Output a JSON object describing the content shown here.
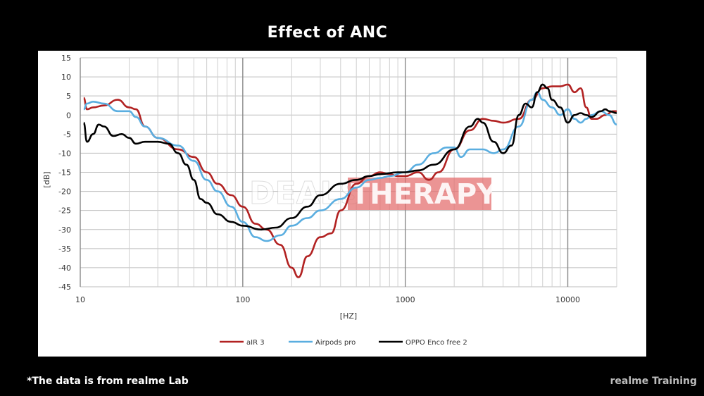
{
  "title": "Effect of  ANC",
  "footnote": "*The data is from realme Lab",
  "brand": "realme Training",
  "colors": {
    "background": "#000000",
    "panel": "#ffffff"
  },
  "chart_data": {
    "type": "line",
    "title": "",
    "xlabel": "[HZ]",
    "ylabel": "[dB]",
    "xscale": "log",
    "xlim": [
      10,
      20000
    ],
    "ylim": [
      -45,
      15
    ],
    "xticks": [
      10,
      100,
      1000,
      10000
    ],
    "xtick_labels": [
      "10",
      "100",
      "1000",
      "10000"
    ],
    "yticks": [
      15,
      10,
      5,
      0,
      -5,
      -10,
      -15,
      -20,
      -25,
      -30,
      -35,
      -40,
      -45
    ],
    "grid": true,
    "legend": "bottom",
    "series": [
      {
        "name": "aIR 3",
        "color": "#b22222",
        "points": [
          [
            10.5,
            4.5
          ],
          [
            11,
            1.5
          ],
          [
            12,
            2
          ],
          [
            14,
            2.5
          ],
          [
            17,
            4
          ],
          [
            20,
            2
          ],
          [
            22,
            1.5
          ],
          [
            25,
            -3
          ],
          [
            30,
            -6
          ],
          [
            40,
            -9
          ],
          [
            50,
            -11
          ],
          [
            60,
            -15
          ],
          [
            70,
            -18
          ],
          [
            85,
            -21
          ],
          [
            100,
            -24
          ],
          [
            120,
            -28.5
          ],
          [
            140,
            -30
          ],
          [
            170,
            -34
          ],
          [
            200,
            -40
          ],
          [
            220,
            -42.5
          ],
          [
            250,
            -37
          ],
          [
            300,
            -32
          ],
          [
            350,
            -31
          ],
          [
            400,
            -25
          ],
          [
            500,
            -18
          ],
          [
            600,
            -16
          ],
          [
            700,
            -15
          ],
          [
            800,
            -15.5
          ],
          [
            900,
            -16
          ],
          [
            1000,
            -16
          ],
          [
            1200,
            -15
          ],
          [
            1400,
            -17
          ],
          [
            1600,
            -15
          ],
          [
            2000,
            -9
          ],
          [
            2500,
            -4
          ],
          [
            3000,
            -1
          ],
          [
            3500,
            -1.5
          ],
          [
            4000,
            -2
          ],
          [
            5000,
            -1
          ],
          [
            6000,
            4
          ],
          [
            7000,
            7
          ],
          [
            8000,
            7.5
          ],
          [
            9000,
            7.5
          ],
          [
            10000,
            8
          ],
          [
            11000,
            6
          ],
          [
            12000,
            7
          ],
          [
            13000,
            2
          ],
          [
            14000,
            -1
          ],
          [
            15000,
            -1
          ],
          [
            17000,
            0
          ],
          [
            19000,
            1
          ],
          [
            20000,
            1
          ]
        ]
      },
      {
        "name": "Airpods pro",
        "color": "#5aaee0",
        "points": [
          [
            10.5,
            1.5
          ],
          [
            11,
            3
          ],
          [
            12,
            3.5
          ],
          [
            14,
            3
          ],
          [
            17,
            1
          ],
          [
            20,
            1
          ],
          [
            22,
            -0.5
          ],
          [
            25,
            -3
          ],
          [
            30,
            -6
          ],
          [
            40,
            -8
          ],
          [
            50,
            -12
          ],
          [
            60,
            -17
          ],
          [
            70,
            -20
          ],
          [
            85,
            -24
          ],
          [
            100,
            -28
          ],
          [
            120,
            -32
          ],
          [
            140,
            -33
          ],
          [
            170,
            -31.5
          ],
          [
            200,
            -29
          ],
          [
            250,
            -27
          ],
          [
            300,
            -25
          ],
          [
            400,
            -22
          ],
          [
            500,
            -19
          ],
          [
            600,
            -17
          ],
          [
            700,
            -16.5
          ],
          [
            800,
            -16
          ],
          [
            1000,
            -15
          ],
          [
            1200,
            -13
          ],
          [
            1500,
            -10
          ],
          [
            1800,
            -8.5
          ],
          [
            2000,
            -8.5
          ],
          [
            2200,
            -11
          ],
          [
            2500,
            -9
          ],
          [
            3000,
            -9
          ],
          [
            3500,
            -10
          ],
          [
            4000,
            -9
          ],
          [
            5000,
            -3
          ],
          [
            6000,
            4
          ],
          [
            6500,
            6
          ],
          [
            7000,
            4
          ],
          [
            8000,
            2
          ],
          [
            9000,
            0
          ],
          [
            10000,
            1.5
          ],
          [
            11000,
            -1
          ],
          [
            12000,
            -2
          ],
          [
            13000,
            -1
          ],
          [
            14000,
            0
          ],
          [
            16000,
            1
          ],
          [
            18000,
            0
          ],
          [
            20000,
            -2.5
          ]
        ]
      },
      {
        "name": "OPPO Enco free 2",
        "color": "#000000",
        "points": [
          [
            10.5,
            -2
          ],
          [
            11,
            -7
          ],
          [
            12,
            -5
          ],
          [
            13,
            -2.5
          ],
          [
            14,
            -3
          ],
          [
            16,
            -5.5
          ],
          [
            18,
            -5
          ],
          [
            20,
            -6
          ],
          [
            22,
            -7.5
          ],
          [
            25,
            -7
          ],
          [
            30,
            -7
          ],
          [
            35,
            -7.5
          ],
          [
            40,
            -10
          ],
          [
            45,
            -13
          ],
          [
            50,
            -17
          ],
          [
            55,
            -22
          ],
          [
            60,
            -23
          ],
          [
            70,
            -26
          ],
          [
            85,
            -28
          ],
          [
            100,
            -29
          ],
          [
            130,
            -30
          ],
          [
            160,
            -29.5
          ],
          [
            200,
            -27
          ],
          [
            250,
            -24
          ],
          [
            300,
            -21
          ],
          [
            400,
            -18
          ],
          [
            500,
            -17
          ],
          [
            600,
            -16
          ],
          [
            700,
            -15.5
          ],
          [
            900,
            -15
          ],
          [
            1000,
            -15
          ],
          [
            1200,
            -14.5
          ],
          [
            1500,
            -13
          ],
          [
            2000,
            -9
          ],
          [
            2500,
            -3
          ],
          [
            2800,
            -1
          ],
          [
            3000,
            -2
          ],
          [
            3500,
            -7
          ],
          [
            4000,
            -10
          ],
          [
            4500,
            -8
          ],
          [
            5000,
            0
          ],
          [
            5500,
            3
          ],
          [
            6000,
            2
          ],
          [
            6500,
            6
          ],
          [
            7000,
            8
          ],
          [
            7500,
            7
          ],
          [
            8000,
            4
          ],
          [
            9000,
            2
          ],
          [
            10000,
            -2
          ],
          [
            11000,
            0
          ],
          [
            12000,
            0.5
          ],
          [
            13000,
            0
          ],
          [
            14000,
            -0.5
          ],
          [
            16000,
            1
          ],
          [
            17000,
            1.5
          ],
          [
            18000,
            1
          ],
          [
            20000,
            0.5
          ]
        ]
      }
    ]
  },
  "watermark": {
    "part1": "DEALS",
    "part2": "THERAPY"
  }
}
